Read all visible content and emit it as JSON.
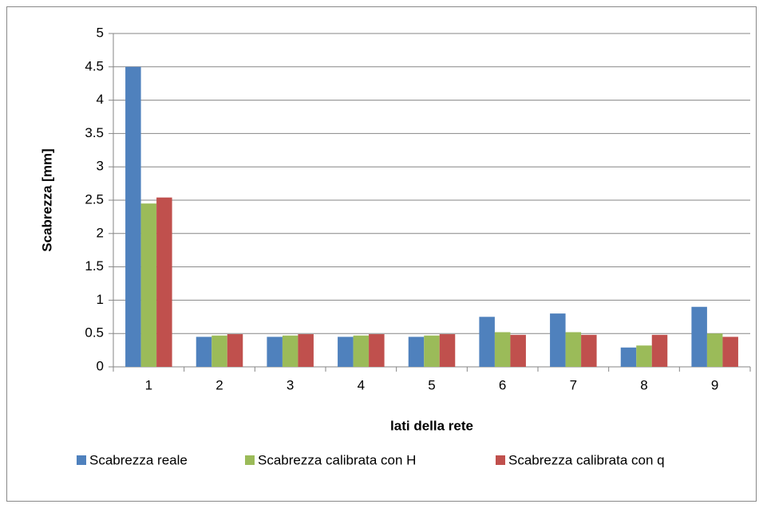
{
  "chart_data": {
    "type": "bar",
    "xlabel": "lati della rete",
    "ylabel": "Scabrezza [mm]",
    "categories": [
      "1",
      "2",
      "3",
      "4",
      "5",
      "6",
      "7",
      "8",
      "9"
    ],
    "series": [
      {
        "name": "Scabrezza reale",
        "color": "#4f81bd",
        "values": [
          4.5,
          0.45,
          0.45,
          0.45,
          0.45,
          0.75,
          0.8,
          0.29,
          0.9
        ]
      },
      {
        "name": "Scabrezza calibrata con H",
        "color": "#9bbb59",
        "values": [
          2.45,
          0.47,
          0.47,
          0.47,
          0.47,
          0.52,
          0.52,
          0.32,
          0.5
        ]
      },
      {
        "name": "Scabrezza calibrata con q",
        "color": "#c0504d",
        "values": [
          2.54,
          0.49,
          0.49,
          0.49,
          0.49,
          0.48,
          0.48,
          0.48,
          0.45
        ]
      }
    ],
    "ylim": [
      0,
      5
    ],
    "yticks": [
      0,
      0.5,
      1,
      1.5,
      2,
      2.5,
      3,
      3.5,
      4,
      4.5,
      5
    ],
    "grid": true,
    "legend": "bottom"
  }
}
